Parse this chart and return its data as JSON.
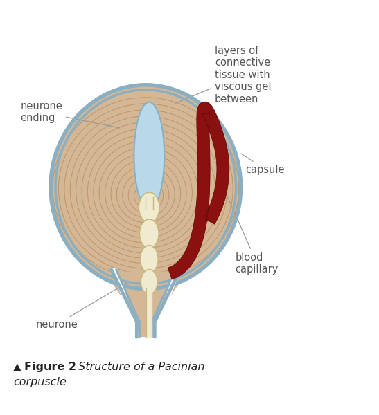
{
  "bg_color": "#ffffff",
  "capsule_outer_color": "#8aafc2",
  "capsule_fill_color": "#d4b896",
  "layer_line_color": "#c0956a",
  "neurone_ending_color": "#b8d9ea",
  "neurone_body_color": "#f0ead0",
  "neurone_body_edge": "#c8b878",
  "blood_capillary_color": "#8b1010",
  "blood_capillary_edge": "#5a0808",
  "label_color": "#555555",
  "arrow_color": "#999999",
  "title_bold": "Figure 2",
  "title_italic": " Structure of a Pacinian",
  "title_line2": "corpuscle",
  "label_neurone_ending": "neurone\nending",
  "label_layers": "layers of\nconnective\ntissue with\nviscous gel\nbetween",
  "label_capsule": "capsule",
  "label_blood": "blood\ncapillary",
  "label_neurone": "neurone",
  "font_size_labels": 10.5,
  "font_size_title": 11.5
}
